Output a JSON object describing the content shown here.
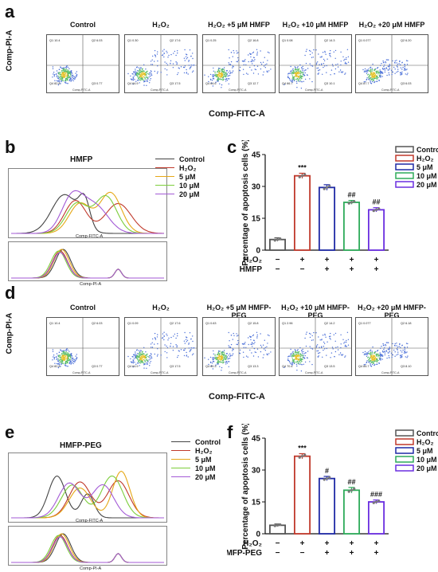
{
  "panels": {
    "a": "a",
    "b": "b",
    "c": "c",
    "d": "d",
    "e": "e",
    "f": "f"
  },
  "flow_a": {
    "titles": [
      "Control",
      "H₂O₂",
      "H₂O₂ +5 μM HMFP",
      "H₂O₂ +10 μM HMFP",
      "H₂O₂ +20 μM HMFP"
    ],
    "quadrants": [
      {
        "q1": "Q1 10.4",
        "q2": "Q2 6.03",
        "q3": "Q4 82.8",
        "q4": "Q3 0.77"
      },
      {
        "q1": "Q1 0.30",
        "q2": "Q2 17.6",
        "q3": "Q4 64.9",
        "q4": "Q3 17.5"
      },
      {
        "q1": "Q1 0.25",
        "q2": "Q2 16.8",
        "q3": "Q4 64.6",
        "q4": "Q3 12.7"
      },
      {
        "q1": "Q1 0.08",
        "q2": "Q2 14.3",
        "q3": "Q4 66.7",
        "q4": "Q3 10.1"
      },
      {
        "q1": "Q1 0.077",
        "q2": "Q2 6.20",
        "q3": "Q4 87.7",
        "q4": "Q3 6.03"
      }
    ],
    "ylabel": "Comp-PI-A",
    "xlabel": "Comp-FITC-A",
    "small_xlabel": "Comp-FITC-A"
  },
  "flow_d": {
    "titles": [
      "Control",
      "H₂O₂",
      "H₂O₂ +5 μM HMFP-PEG",
      "H₂O₂ +10 μM HMFP-PEG",
      "H₂O₂ +20 μM HMFP-PEG"
    ],
    "quadrants": [
      {
        "q1": "Q1 10.4",
        "q2": "Q2 6.03",
        "q3": "Q4 82.8",
        "q4": "Q3 0.77"
      },
      {
        "q1": "Q1 0.09",
        "q2": "Q2 17.6",
        "q3": "Q4 64.9",
        "q4": "Q3 17.5"
      },
      {
        "q1": "Q1 0.63",
        "q2": "Q2 15.8",
        "q3": "Q4 60.3",
        "q4": "Q3 13.3"
      },
      {
        "q1": "Q1 2.96",
        "q2": "Q2 14.2",
        "q3": "Q4 70.4",
        "q4": "Q3 13.5"
      },
      {
        "q1": "Q1 0.077",
        "q2": "Q2 6.18",
        "q3": "Q4 85.7",
        "q4": "Q3 8.10"
      }
    ],
    "ylabel": "Comp-PI-A",
    "xlabel": "Comp-FITC-A",
    "small_xlabel": "Comp-FITC-A"
  },
  "hist_b": {
    "title": "HMFP",
    "top_xlabel": "Comp-FITC-A",
    "bottom_xlabel": "Comp-PI-A",
    "legend": [
      "Control",
      "H₂O₂",
      "5 μM",
      "10 μM",
      "20 μM"
    ]
  },
  "hist_e": {
    "title": "HMFP-PEG",
    "top_xlabel": "Comp-FITC-A",
    "bottom_xlabel": "Comp-PI-A",
    "legend": [
      "Control",
      "H₂O₂",
      "5 μM",
      "10 μM",
      "20 μM"
    ]
  },
  "colors": {
    "control": "#444444",
    "h2o2": "#c0392b",
    "um5": "#e6a817",
    "um10": "#7ccd3b",
    "um20": "#a35ad6",
    "bar_control": "#555555",
    "bar_h2o2": "#c0392b",
    "bar_5": "#1f2aa5",
    "bar_10": "#2eab5a",
    "bar_20": "#6a2ee0"
  },
  "chart_data": [
    {
      "type": "bar",
      "ylabel": "Percentage of apoptosis cells (%)",
      "ylim": [
        0,
        45
      ],
      "yticks": [
        "0",
        "15",
        "30",
        "45"
      ],
      "categories": [
        "Control",
        "H₂O₂",
        "5 μM",
        "10 μM",
        "20 μM"
      ],
      "values": [
        5,
        35,
        29.5,
        22.5,
        19
      ],
      "errors": [
        0.8,
        1.2,
        1.3,
        0.9,
        1.0
      ],
      "annotations": [
        "",
        "***",
        "",
        "##",
        "##"
      ],
      "legend": [
        "Control",
        "H₂O₂",
        "5 μM",
        "10 μM",
        "20 μM"
      ],
      "treatment_rows": [
        {
          "label": "H₂O₂",
          "signs": [
            "−",
            "+",
            "+",
            "+",
            "+"
          ]
        },
        {
          "label": "HMFP",
          "signs": [
            "−",
            "−",
            "+",
            "+",
            "+"
          ]
        }
      ],
      "grid": false
    },
    {
      "type": "bar",
      "ylabel": "Percentage of apoptosis cells (%)",
      "ylim": [
        0,
        45
      ],
      "yticks": [
        "0",
        "15",
        "30",
        "45"
      ],
      "categories": [
        "Control",
        "H₂O₂",
        "5 μM",
        "10 μM",
        "20 μM"
      ],
      "values": [
        4,
        36.5,
        26,
        20.5,
        15
      ],
      "errors": [
        0.6,
        1.2,
        1.0,
        1.3,
        0.9
      ],
      "annotations": [
        "",
        "***",
        "#",
        "##",
        "###"
      ],
      "legend": [
        "Control",
        "H₂O₂",
        "5 μM",
        "10 μM",
        "20 μM"
      ],
      "treatment_rows": [
        {
          "label": "H₂O₂",
          "signs": [
            "−",
            "+",
            "+",
            "+",
            "+"
          ]
        },
        {
          "label": "HMFP-PEG",
          "signs": [
            "−",
            "−",
            "+",
            "+",
            "+"
          ]
        }
      ],
      "grid": false
    }
  ]
}
